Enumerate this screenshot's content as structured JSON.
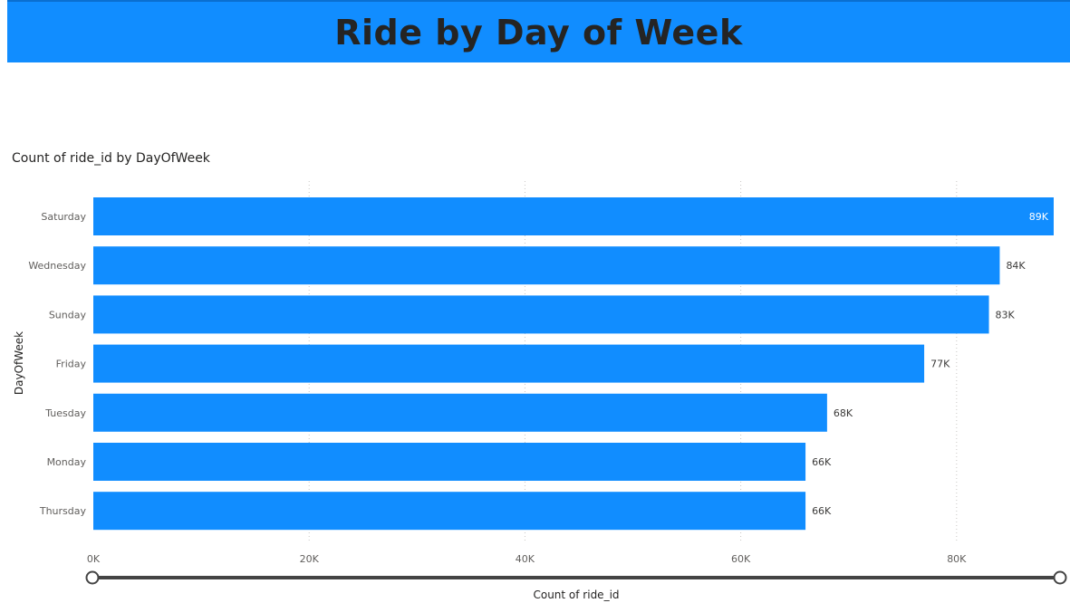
{
  "page": {
    "banner_title": "Ride by Day of Week"
  },
  "colors": {
    "banner": "#118DFF",
    "bar": "#118DFF",
    "title_text": "#252423",
    "slider": "#444444"
  },
  "chart_data": {
    "type": "bar",
    "orientation": "horizontal",
    "title": "Count of ride_id by DayOfWeek",
    "xlabel": "Count of ride_id",
    "ylabel": "DayOfWeek",
    "categories": [
      "Saturday",
      "Wednesday",
      "Sunday",
      "Friday",
      "Tuesday",
      "Monday",
      "Thursday"
    ],
    "values": [
      89000,
      84000,
      83000,
      77000,
      68000,
      66000,
      66000
    ],
    "data_labels": [
      "89K",
      "84K",
      "83K",
      "77K",
      "68K",
      "66K",
      "66K"
    ],
    "xlim": [
      0,
      89000
    ],
    "x_ticks": [
      0,
      20000,
      40000,
      60000,
      80000
    ],
    "x_tick_labels": [
      "0K",
      "20K",
      "40K",
      "60K",
      "80K"
    ],
    "grid": "vertical-dotted",
    "legend": "none",
    "zoom_slider": true
  }
}
